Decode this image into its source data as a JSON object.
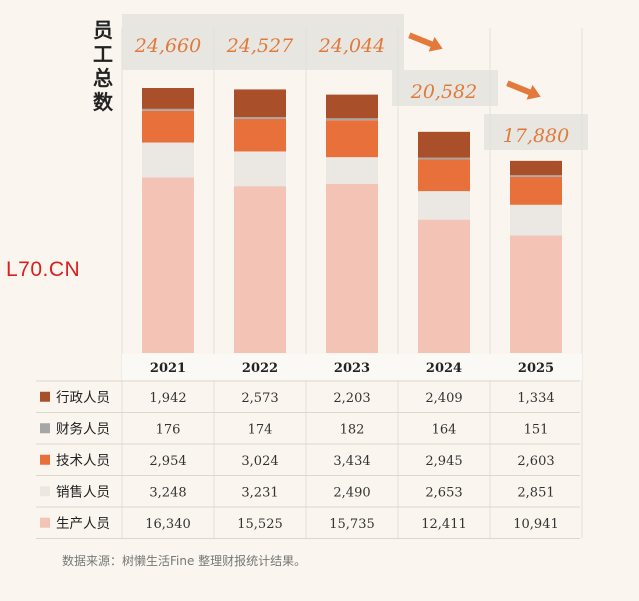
{
  "title_vertical": [
    "员",
    "工",
    "总",
    "数"
  ],
  "watermark": "L70.CN",
  "source_note": "数据来源：树懒生活Fine 整理财报统计结果。",
  "colors": {
    "admin": "#a9502a",
    "finance": "#a6a6a6",
    "tech": "#e8703a",
    "sales": "#ebe8e4",
    "production": "#f3c4b6",
    "total_label": "#e07a3c",
    "arrow": "#e37a3c",
    "band": "#e2e0dc"
  },
  "chart_data": {
    "type": "bar",
    "stacked": true,
    "categories": [
      "2021",
      "2022",
      "2023",
      "2024",
      "2025"
    ],
    "totals": [
      24660,
      24527,
      24044,
      20582,
      17880
    ],
    "total_labels": [
      "24,660",
      "24,527",
      "24,044",
      "20,582",
      "17,880"
    ],
    "series": [
      {
        "key": "production",
        "name": "生产人员",
        "values": [
          16340,
          15525,
          15735,
          12411,
          10941
        ],
        "labels": [
          "16,340",
          "15,525",
          "15,735",
          "12,411",
          "10,941"
        ]
      },
      {
        "key": "sales",
        "name": "销售人员",
        "values": [
          3248,
          3231,
          2490,
          2653,
          2851
        ],
        "labels": [
          "3,248",
          "3,231",
          "2,490",
          "2,653",
          "2,851"
        ]
      },
      {
        "key": "tech",
        "name": "技术人员",
        "values": [
          2954,
          3024,
          3434,
          2945,
          2603
        ],
        "labels": [
          "2,954",
          "3,024",
          "3,434",
          "2,945",
          "2,603"
        ]
      },
      {
        "key": "finance",
        "name": "财务人员",
        "values": [
          176,
          174,
          182,
          164,
          151
        ],
        "labels": [
          "176",
          "174",
          "182",
          "164",
          "151"
        ]
      },
      {
        "key": "admin",
        "name": "行政人员",
        "values": [
          1942,
          2573,
          2203,
          2409,
          1334
        ],
        "labels": [
          "1,942",
          "2,573",
          "2,203",
          "2,409",
          "1,334"
        ]
      }
    ],
    "table_order": [
      "admin",
      "finance",
      "tech",
      "sales",
      "production"
    ],
    "legend_position": "table-left",
    "grid": false
  }
}
